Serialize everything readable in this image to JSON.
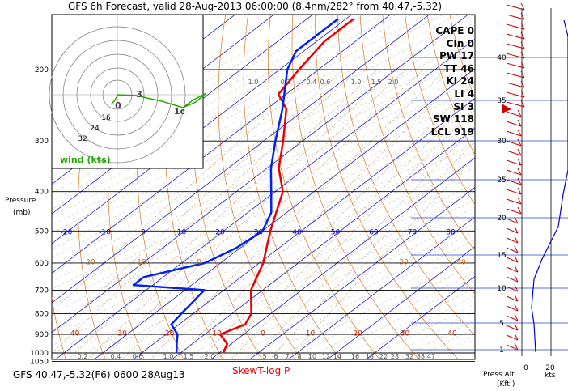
{
  "header": {
    "title": "GFS 6h Forecast, valid 28-Aug-2013 06:00:00 (8.4nm/282° from 40.47,-5.32)"
  },
  "footer": {
    "station": "GFS 40.47,-5.32(F6) 0600 28Aug13",
    "chart_name": "SkewT-log P"
  },
  "axes": {
    "pressure_title": "Pressure",
    "pressure_unit": "(mb)",
    "alt_title": "Press Alt.",
    "alt_unit": "(Kft.)",
    "wind_unit": "kts"
  },
  "hodograph": {
    "legend": "wind (kts)",
    "ring_labels": [
      "16",
      "24",
      "32"
    ],
    "point_labels": [
      {
        "text": "3"
      },
      {
        "text": "0"
      },
      {
        "text": "1c"
      }
    ]
  },
  "indices": [
    {
      "label": "CAPE",
      "value": "0"
    },
    {
      "label": "CIn",
      "value": "0"
    },
    {
      "label": "PW",
      "value": "17"
    },
    {
      "label": "TT",
      "value": "46"
    },
    {
      "label": "KI",
      "value": "24"
    },
    {
      "label": "LI",
      "value": "4"
    },
    {
      "label": "SI",
      "value": "3"
    },
    {
      "label": "SW",
      "value": "118"
    },
    {
      "label": "LCL",
      "value": "919"
    }
  ],
  "colors": {
    "isotherm": "#0000cc",
    "dry_adiabat": "#cc6600",
    "temperature": "#ee0000",
    "dewpoint": "#0022ee",
    "mixing_ratio": "#996633",
    "hodograph": "#22aa00"
  },
  "chart_data": {
    "type": "line",
    "y_scale": "log pressure (mb)",
    "ylim": [
      1050,
      150
    ],
    "pressure_ticks": [
      "200",
      "300",
      "400",
      "500",
      "600",
      "700",
      "800",
      "900",
      "1000",
      "1050"
    ],
    "isotherm_ticks": [
      "-20",
      "-10",
      "0",
      "10",
      "20",
      "30",
      "40",
      "50",
      "60",
      "70",
      "80"
    ],
    "dry_adiabat_ticks": [
      "-40",
      "-30",
      "-20",
      "-10",
      "0",
      "10",
      "20",
      "30",
      "40"
    ],
    "dry_adiabat_upper_ticks": [
      "20",
      "10",
      "0",
      "30",
      "40"
    ],
    "mixing_ratio_top": [
      "1.0",
      "0.2",
      "0.4",
      "0.6",
      "1.0",
      "1.5",
      "2.0"
    ],
    "mixing_ratio_bottom": [
      "0.2",
      "0.4",
      "0.6",
      "1.0",
      "1.5",
      "2.0",
      "5",
      "6",
      "7",
      "8",
      "10",
      "12",
      "14",
      "16",
      "18",
      "22",
      "28",
      "32",
      "38",
      "47"
    ],
    "altitude_ticks_kft": [
      "40",
      "35",
      "30",
      "25",
      "20",
      "15",
      "10",
      "5",
      "1"
    ],
    "wind_axis_ticks": [
      "0",
      "20"
    ],
    "series": [
      {
        "name": "temperature",
        "points": [
          [
            1000,
            21
          ],
          [
            950,
            19
          ],
          [
            900,
            14
          ],
          [
            850,
            17
          ],
          [
            800,
            15
          ],
          [
            700,
            7
          ],
          [
            600,
            1
          ],
          [
            500,
            -8
          ],
          [
            400,
            -18
          ],
          [
            350,
            -27
          ],
          [
            300,
            -35
          ],
          [
            250,
            -45
          ],
          [
            230,
            -52
          ],
          [
            200,
            -55
          ],
          [
            170,
            -58
          ],
          [
            150,
            -58
          ]
        ]
      },
      {
        "name": "dewpoint",
        "points": [
          [
            1000,
            9
          ],
          [
            950,
            6
          ],
          [
            900,
            3
          ],
          [
            850,
            -2
          ],
          [
            800,
            -3
          ],
          [
            700,
            -5
          ],
          [
            680,
            -25
          ],
          [
            650,
            -25
          ],
          [
            600,
            -14
          ],
          [
            550,
            -11
          ],
          [
            500,
            -10
          ],
          [
            450,
            -14
          ],
          [
            400,
            -21
          ],
          [
            350,
            -29
          ],
          [
            300,
            -37
          ],
          [
            250,
            -46
          ],
          [
            200,
            -58
          ],
          [
            180,
            -62
          ],
          [
            150,
            -62
          ]
        ]
      }
    ]
  }
}
